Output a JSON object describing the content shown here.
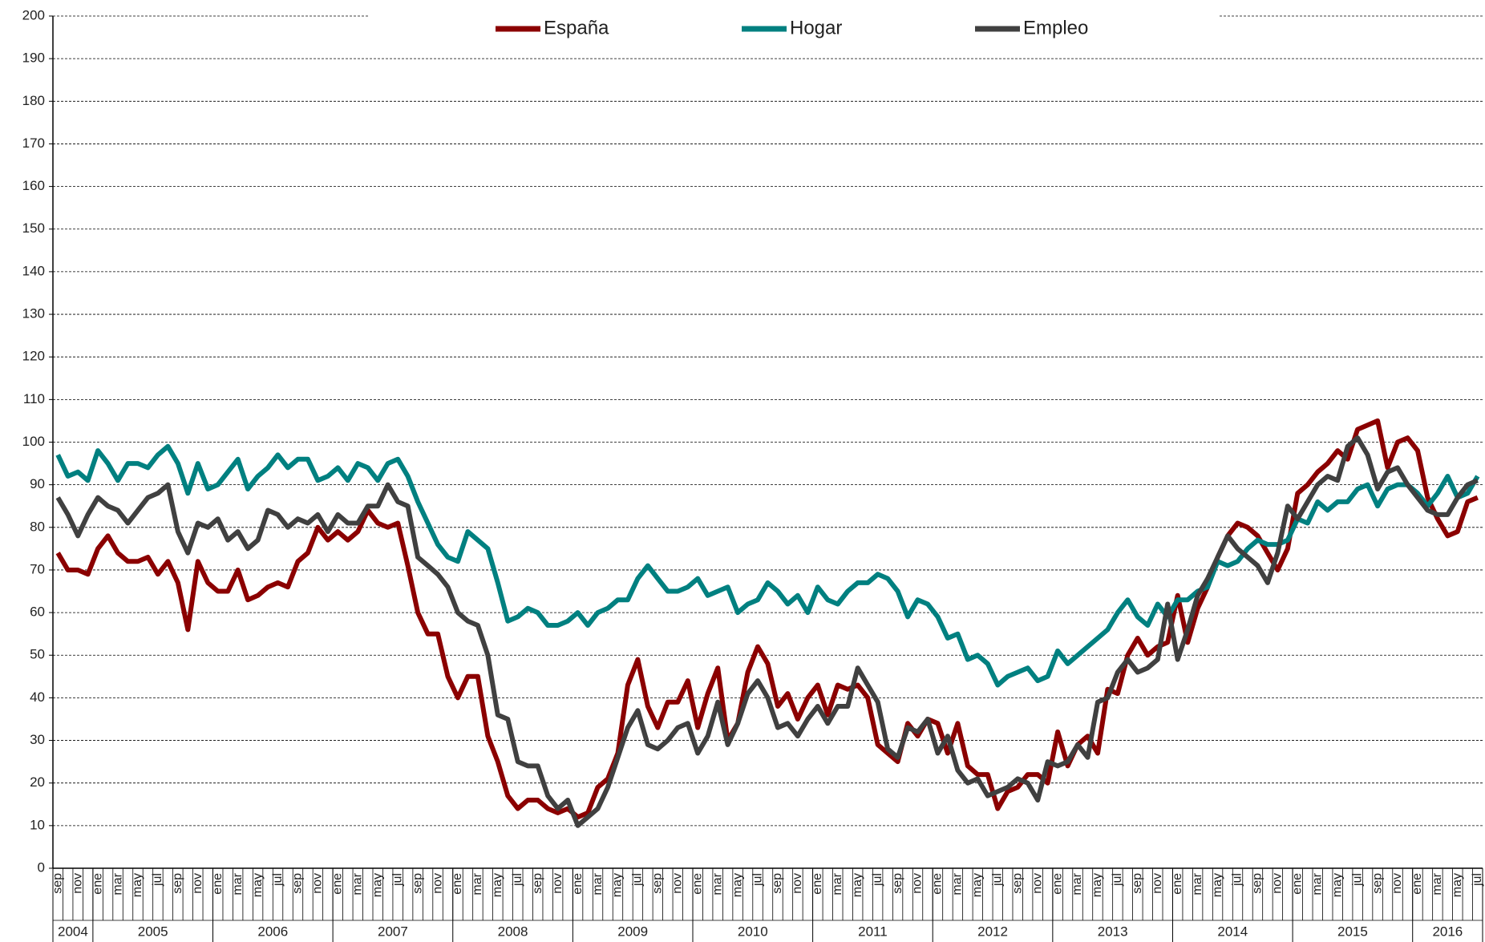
{
  "chart_data": {
    "type": "line",
    "categories": [
      "sep",
      null,
      "nov",
      null,
      "ene",
      null,
      "mar",
      null,
      "may",
      null,
      "jul",
      null,
      "sep",
      null,
      "nov",
      null,
      "ene",
      null,
      "mar",
      null,
      "may",
      null,
      "jul",
      null,
      "sep",
      null,
      "nov",
      null,
      "ene",
      null,
      "mar",
      null,
      "may",
      null,
      "jul",
      null,
      "sep",
      null,
      "nov",
      null,
      "ene",
      null,
      "mar",
      null,
      "may",
      null,
      "jul",
      null,
      "sep",
      null,
      "nov",
      null,
      "ene",
      null,
      "mar",
      null,
      "may",
      null,
      "jul",
      null,
      "sep",
      null,
      "nov",
      null,
      "ene",
      null,
      "mar",
      null,
      "may",
      null,
      "jul",
      null,
      "sep",
      null,
      "nov",
      null,
      "ene",
      null,
      "mar",
      null,
      "may",
      null,
      "jul",
      null,
      "sep",
      null,
      "nov",
      null,
      "ene",
      null,
      "mar",
      null,
      "may",
      null,
      "jul",
      null,
      "sep",
      null,
      "nov",
      null,
      "ene",
      null,
      "mar",
      null,
      "may",
      null,
      "jul",
      null,
      "sep",
      null,
      "nov",
      null,
      "ene",
      null,
      "mar",
      null,
      "may",
      null,
      "jul",
      null,
      "sep",
      null,
      "nov",
      null,
      "ene",
      null,
      "mar",
      null,
      "may",
      null,
      "jul",
      null,
      "sep",
      null,
      "nov",
      null,
      "ene",
      null,
      "mar",
      null,
      "may",
      null,
      "jul"
    ],
    "years": [
      "2004",
      "2005",
      "2006",
      "2007",
      "2008",
      "2009",
      "2010",
      "2011",
      "2012",
      "2013",
      "2014",
      "2015",
      "2016"
    ],
    "series": [
      {
        "name": "España",
        "color": "#8b0000",
        "values": [
          74,
          70,
          70,
          69,
          75,
          78,
          74,
          72,
          72,
          73,
          69,
          72,
          67,
          56,
          72,
          67,
          65,
          65,
          70,
          63,
          64,
          66,
          67,
          66,
          72,
          74,
          80,
          77,
          79,
          77,
          79,
          84,
          81,
          80,
          81,
          71,
          60,
          55,
          55,
          45,
          40,
          45,
          45,
          31,
          25,
          17,
          14,
          16,
          16,
          14,
          13,
          14,
          12,
          13,
          19,
          21,
          27,
          43,
          49,
          38,
          33,
          39,
          39,
          44,
          33,
          41,
          47,
          30,
          34,
          46,
          52,
          48,
          38,
          41,
          35,
          40,
          43,
          36,
          43,
          42,
          43,
          40,
          29,
          27,
          25,
          34,
          31,
          35,
          34,
          27,
          34,
          24,
          22,
          22,
          14,
          18,
          19,
          22,
          22,
          20,
          32,
          24,
          29,
          31,
          27,
          42,
          41,
          50,
          54,
          50,
          52,
          53,
          64,
          53,
          61,
          66,
          73,
          78,
          81,
          80,
          78,
          74,
          70,
          75,
          88,
          90,
          93,
          95,
          98,
          96,
          103,
          104,
          105,
          94,
          100,
          101,
          98,
          87,
          82,
          78,
          79,
          86,
          87
        ]
      },
      {
        "name": "Hogar",
        "color": "#008080",
        "values": [
          97,
          92,
          93,
          91,
          98,
          95,
          91,
          95,
          95,
          94,
          97,
          99,
          95,
          88,
          95,
          89,
          90,
          93,
          96,
          89,
          92,
          94,
          97,
          94,
          96,
          96,
          91,
          92,
          94,
          91,
          95,
          94,
          91,
          95,
          96,
          92,
          86,
          81,
          76,
          73,
          72,
          79,
          77,
          75,
          67,
          58,
          59,
          61,
          60,
          57,
          57,
          58,
          60,
          57,
          60,
          61,
          63,
          63,
          68,
          71,
          68,
          65,
          65,
          66,
          68,
          64,
          65,
          66,
          60,
          62,
          63,
          67,
          65,
          62,
          64,
          60,
          66,
          63,
          62,
          65,
          67,
          67,
          69,
          68,
          65,
          59,
          63,
          62,
          59,
          54,
          55,
          49,
          50,
          48,
          43,
          45,
          46,
          47,
          44,
          45,
          51,
          48,
          50,
          52,
          54,
          56,
          60,
          63,
          59,
          57,
          62,
          59,
          63,
          63,
          65,
          66,
          72,
          71,
          72,
          75,
          77,
          76,
          76,
          77,
          82,
          81,
          86,
          84,
          86,
          86,
          89,
          90,
          85,
          89,
          90,
          90,
          88,
          85,
          88,
          92,
          87,
          88,
          92
        ]
      },
      {
        "name": "Empleo",
        "color": "#404040",
        "values": [
          87,
          83,
          78,
          83,
          87,
          85,
          84,
          81,
          84,
          87,
          88,
          90,
          79,
          74,
          81,
          80,
          82,
          77,
          79,
          75,
          77,
          84,
          83,
          80,
          82,
          81,
          83,
          79,
          83,
          81,
          81,
          85,
          85,
          90,
          86,
          85,
          73,
          71,
          69,
          66,
          60,
          58,
          57,
          50,
          36,
          35,
          25,
          24,
          24,
          17,
          14,
          16,
          10,
          12,
          14,
          19,
          26,
          33,
          37,
          29,
          28,
          30,
          33,
          34,
          27,
          31,
          39,
          29,
          34,
          41,
          44,
          40,
          33,
          34,
          31,
          35,
          38,
          34,
          38,
          38,
          47,
          43,
          39,
          28,
          26,
          33,
          32,
          35,
          27,
          31,
          23,
          20,
          21,
          17,
          18,
          19,
          21,
          20,
          16,
          25,
          24,
          25,
          29,
          26,
          39,
          40,
          46,
          49,
          46,
          47,
          49,
          62,
          49,
          56,
          64,
          68,
          73,
          78,
          75,
          73,
          71,
          67,
          74,
          85,
          82,
          86,
          90,
          92,
          91,
          99,
          101,
          97,
          89,
          93,
          94,
          90,
          87,
          84,
          83,
          83,
          87,
          90,
          91
        ]
      }
    ],
    "ylim": [
      0,
      200
    ],
    "yticks": [
      0,
      10,
      20,
      30,
      40,
      50,
      60,
      70,
      80,
      90,
      100,
      110,
      120,
      130,
      140,
      150,
      160,
      170,
      180,
      190,
      200
    ],
    "grid": true
  }
}
